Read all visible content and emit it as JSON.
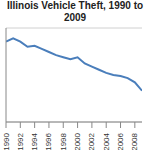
{
  "chart_data": {
    "type": "line",
    "title": "Illinois Vehicle Theft, 1990 to 2009",
    "x": [
      1990,
      1991,
      1992,
      1993,
      1994,
      1995,
      1996,
      1997,
      1998,
      1999,
      2000,
      2001,
      2002,
      2003,
      2004,
      2005,
      2006,
      2007,
      2008,
      2009
    ],
    "values": [
      77000,
      80000,
      77000,
      72000,
      73000,
      70000,
      67000,
      64000,
      62000,
      60000,
      62000,
      56000,
      53000,
      50000,
      47000,
      45000,
      44000,
      42000,
      38000,
      30000
    ],
    "color": "#4a7ebb",
    "xlim": [
      1990,
      2009
    ],
    "xticks": [
      1990,
      1992,
      1994,
      1996,
      1998,
      2000,
      2002,
      2004,
      2006,
      2008
    ],
    "ylim": [
      0,
      90000
    ],
    "yticks": [
      0,
      10000,
      20000,
      30000,
      40000,
      50000,
      60000,
      70000,
      80000,
      90000
    ],
    "grid": true,
    "tick_labels": "x"
  }
}
